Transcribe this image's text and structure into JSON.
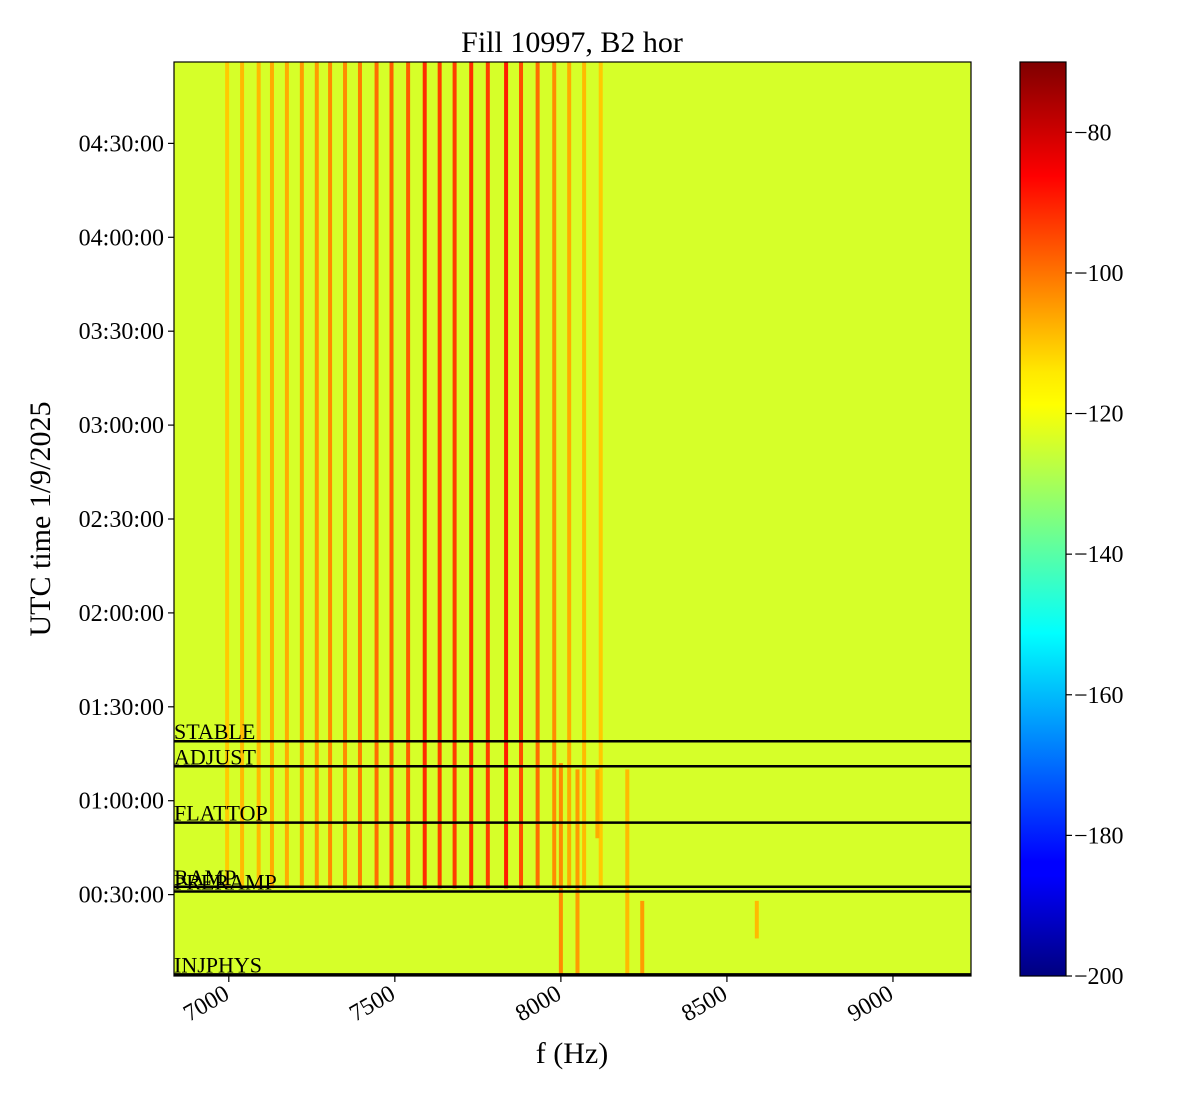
{
  "chart_data": {
    "type": "heatmap",
    "title": "Fill 10997, B2 hor",
    "xlabel": "f (Hz)",
    "ylabel": "UTC time 1/9/2025",
    "xlim": [
      6835,
      9235
    ],
    "ylim_minutes": [
      4,
      296
    ],
    "x_ticks": [
      {
        "value": 7000,
        "label": "7000"
      },
      {
        "value": 7500,
        "label": "7500"
      },
      {
        "value": 8000,
        "label": "8000"
      },
      {
        "value": 8500,
        "label": "8500"
      },
      {
        "value": 9000,
        "label": "9000"
      }
    ],
    "y_ticks": [
      {
        "value": 30,
        "label": "00:30:00"
      },
      {
        "value": 60,
        "label": "01:00:00"
      },
      {
        "value": 90,
        "label": "01:30:00"
      },
      {
        "value": 120,
        "label": "02:00:00"
      },
      {
        "value": 150,
        "label": "02:30:00"
      },
      {
        "value": 180,
        "label": "03:00:00"
      },
      {
        "value": 210,
        "label": "03:30:00"
      },
      {
        "value": 240,
        "label": "04:00:00"
      },
      {
        "value": 270,
        "label": "04:30:00"
      }
    ],
    "colorbar": {
      "range": [
        -200,
        -70
      ],
      "colormap": "jet",
      "ticks": [
        {
          "value": -80,
          "label": "−80"
        },
        {
          "value": -100,
          "label": "−100"
        },
        {
          "value": -120,
          "label": "−120"
        },
        {
          "value": -140,
          "label": "−140"
        },
        {
          "value": -160,
          "label": "−160"
        },
        {
          "value": -180,
          "label": "−180"
        },
        {
          "value": -200,
          "label": "−200"
        }
      ]
    },
    "background_level": -124,
    "phases": [
      {
        "label": "INJPHYS",
        "time": 4.5
      },
      {
        "label": "PRERAMP",
        "time": 31
      },
      {
        "label": "RAMP",
        "time": 32.5
      },
      {
        "label": "FLATTOP",
        "time": 53
      },
      {
        "label": "ADJUST",
        "time": 71
      },
      {
        "label": "STABLE",
        "time": 79
      }
    ],
    "lines": [
      {
        "f": 6995,
        "t_start": 32,
        "t_end": 296,
        "level": -112
      },
      {
        "f": 7040,
        "t_start": 32,
        "t_end": 296,
        "level": -110
      },
      {
        "f": 7090,
        "t_start": 32,
        "t_end": 296,
        "level": -110
      },
      {
        "f": 7130,
        "t_start": 32,
        "t_end": 296,
        "level": -108
      },
      {
        "f": 7175,
        "t_start": 32,
        "t_end": 296,
        "level": -108
      },
      {
        "f": 7220,
        "t_start": 32,
        "t_end": 296,
        "level": -106
      },
      {
        "f": 7265,
        "t_start": 32,
        "t_end": 296,
        "level": -106
      },
      {
        "f": 7305,
        "t_start": 32,
        "t_end": 296,
        "level": -104
      },
      {
        "f": 7350,
        "t_start": 32,
        "t_end": 296,
        "level": -104
      },
      {
        "f": 7395,
        "t_start": 32,
        "t_end": 296,
        "level": -102
      },
      {
        "f": 7445,
        "t_start": 32,
        "t_end": 296,
        "level": -100
      },
      {
        "f": 7490,
        "t_start": 32,
        "t_end": 296,
        "level": -98
      },
      {
        "f": 7540,
        "t_start": 32,
        "t_end": 296,
        "level": -98
      },
      {
        "f": 7590,
        "t_start": 32,
        "t_end": 296,
        "level": -92
      },
      {
        "f": 7635,
        "t_start": 32,
        "t_end": 296,
        "level": -94
      },
      {
        "f": 7680,
        "t_start": 32,
        "t_end": 296,
        "level": -94
      },
      {
        "f": 7730,
        "t_start": 32,
        "t_end": 296,
        "level": -92
      },
      {
        "f": 7780,
        "t_start": 32,
        "t_end": 296,
        "level": -94
      },
      {
        "f": 7835,
        "t_start": 32,
        "t_end": 296,
        "level": -90
      },
      {
        "f": 7880,
        "t_start": 32,
        "t_end": 296,
        "level": -96
      },
      {
        "f": 7930,
        "t_start": 32,
        "t_end": 296,
        "level": -100
      },
      {
        "f": 7980,
        "t_start": 32,
        "t_end": 296,
        "level": -104
      },
      {
        "f": 8025,
        "t_start": 32,
        "t_end": 296,
        "level": -108
      },
      {
        "f": 8070,
        "t_start": 32,
        "t_end": 296,
        "level": -110
      },
      {
        "f": 8120,
        "t_start": 32,
        "t_end": 296,
        "level": -112
      },
      {
        "f": 8000,
        "t_start": 4,
        "t_end": 72,
        "level": -104
      },
      {
        "f": 8050,
        "t_start": 4,
        "t_end": 70,
        "level": -106
      },
      {
        "f": 8110,
        "t_start": 48,
        "t_end": 70,
        "level": -108
      },
      {
        "f": 8200,
        "t_start": 4,
        "t_end": 70,
        "level": -110
      },
      {
        "f": 8245,
        "t_start": 4,
        "t_end": 28,
        "level": -106
      },
      {
        "f": 8590,
        "t_start": 16,
        "t_end": 28,
        "level": -110
      }
    ]
  }
}
